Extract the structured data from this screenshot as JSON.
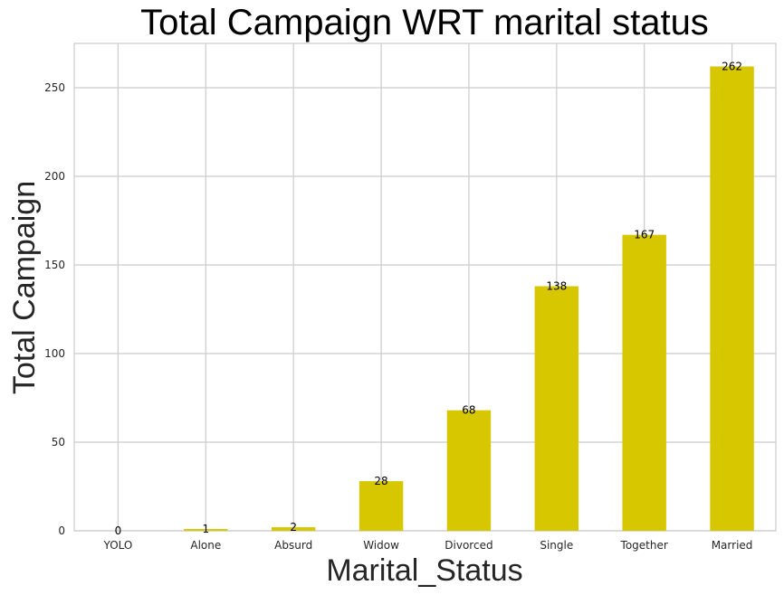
{
  "chart_data": {
    "type": "bar",
    "title": "Total Campaign WRT marital status",
    "xlabel": "Marital_Status",
    "ylabel": "Total Campaign",
    "categories": [
      "YOLO",
      "Alone",
      "Absurd",
      "Widow",
      "Divorced",
      "Single",
      "Together",
      "Married"
    ],
    "values": [
      0,
      1,
      2,
      28,
      68,
      138,
      167,
      262
    ],
    "data_labels": [
      "0",
      "1",
      "2",
      "28",
      "68",
      "138",
      "167",
      "262"
    ],
    "yticks": [
      0,
      50,
      100,
      150,
      200,
      250
    ],
    "ylim": [
      0,
      275
    ],
    "grid": true,
    "bar_color": "#d6c700"
  }
}
